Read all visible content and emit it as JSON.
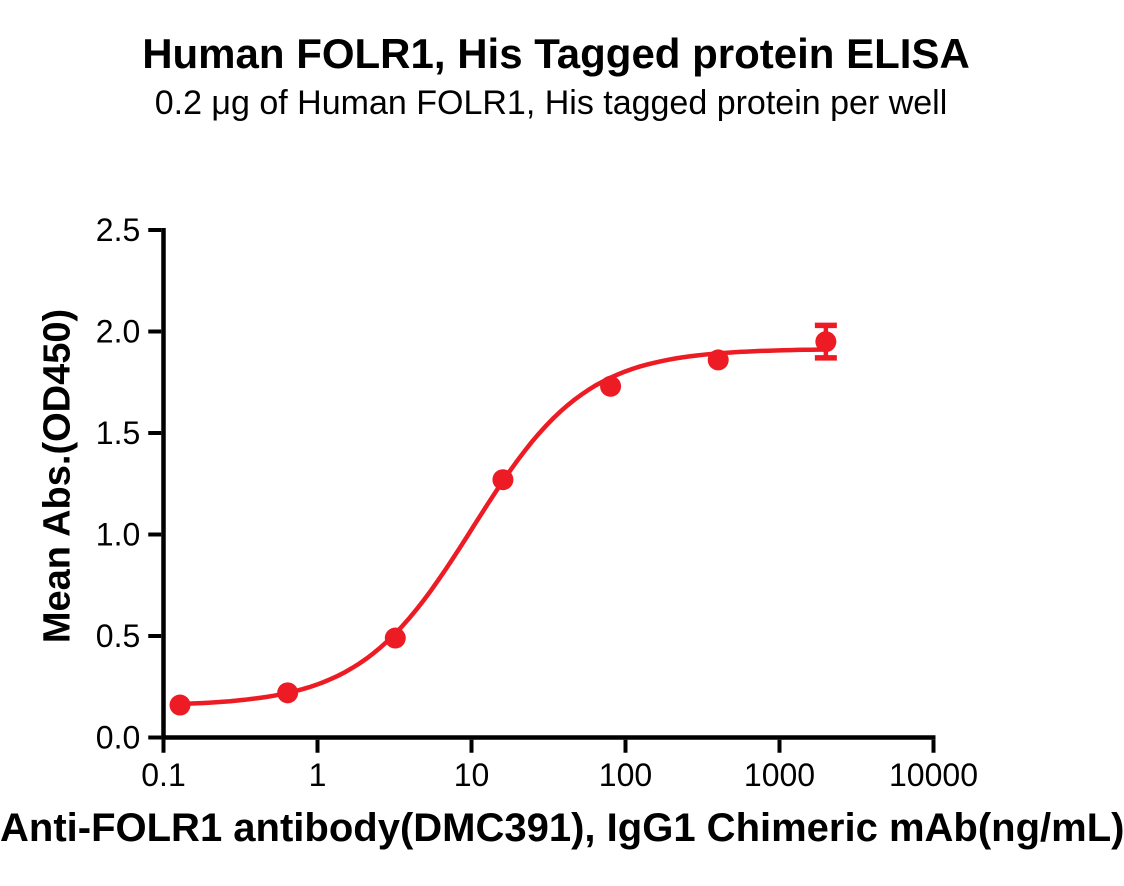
{
  "chart_data": {
    "type": "scatter",
    "title": "Human FOLR1, His Tagged protein ELISA",
    "subtitle": "0.2 μg of Human FOLR1, His tagged protein per well",
    "xlabel": "Anti-FOLR1 antibody(DMC391), IgG1 Chimeric mAb(ng/mL)",
    "ylabel": "Mean Abs.(OD450)",
    "x_scale": "log10",
    "xlim": [
      0.1,
      10000
    ],
    "ylim": [
      0.0,
      2.5
    ],
    "grid": false,
    "legend_position": "none",
    "x_ticks": {
      "values": [
        0.1,
        1,
        10,
        100,
        1000,
        10000
      ],
      "labels": [
        "0.1",
        "1",
        "10",
        "100",
        "1000",
        "10000"
      ]
    },
    "y_ticks": {
      "values": [
        0.0,
        0.5,
        1.0,
        1.5,
        2.0,
        2.5
      ],
      "labels": [
        "0.0",
        "0.5",
        "1.0",
        "1.5",
        "2.0",
        "2.5"
      ]
    },
    "series": [
      {
        "marker": "circle",
        "color": "#ED1C24",
        "points": [
          {
            "x": 0.128,
            "y": 0.16,
            "err": 0
          },
          {
            "x": 0.64,
            "y": 0.22,
            "err": 0
          },
          {
            "x": 3.2,
            "y": 0.49,
            "err": 0
          },
          {
            "x": 16,
            "y": 1.27,
            "err": 0
          },
          {
            "x": 80,
            "y": 1.73,
            "err": 0
          },
          {
            "x": 400,
            "y": 1.86,
            "err": 0
          },
          {
            "x": 2000,
            "y": 1.95,
            "err": 0.08
          }
        ],
        "fit_curve": {
          "model": "4PL",
          "bottom": 0.155,
          "top": 1.915,
          "ec50": 10.2,
          "hill": 1.18
        }
      }
    ],
    "colors": {
      "axis": "#000000",
      "series": "#ED1C24",
      "background": "#ffffff"
    }
  }
}
